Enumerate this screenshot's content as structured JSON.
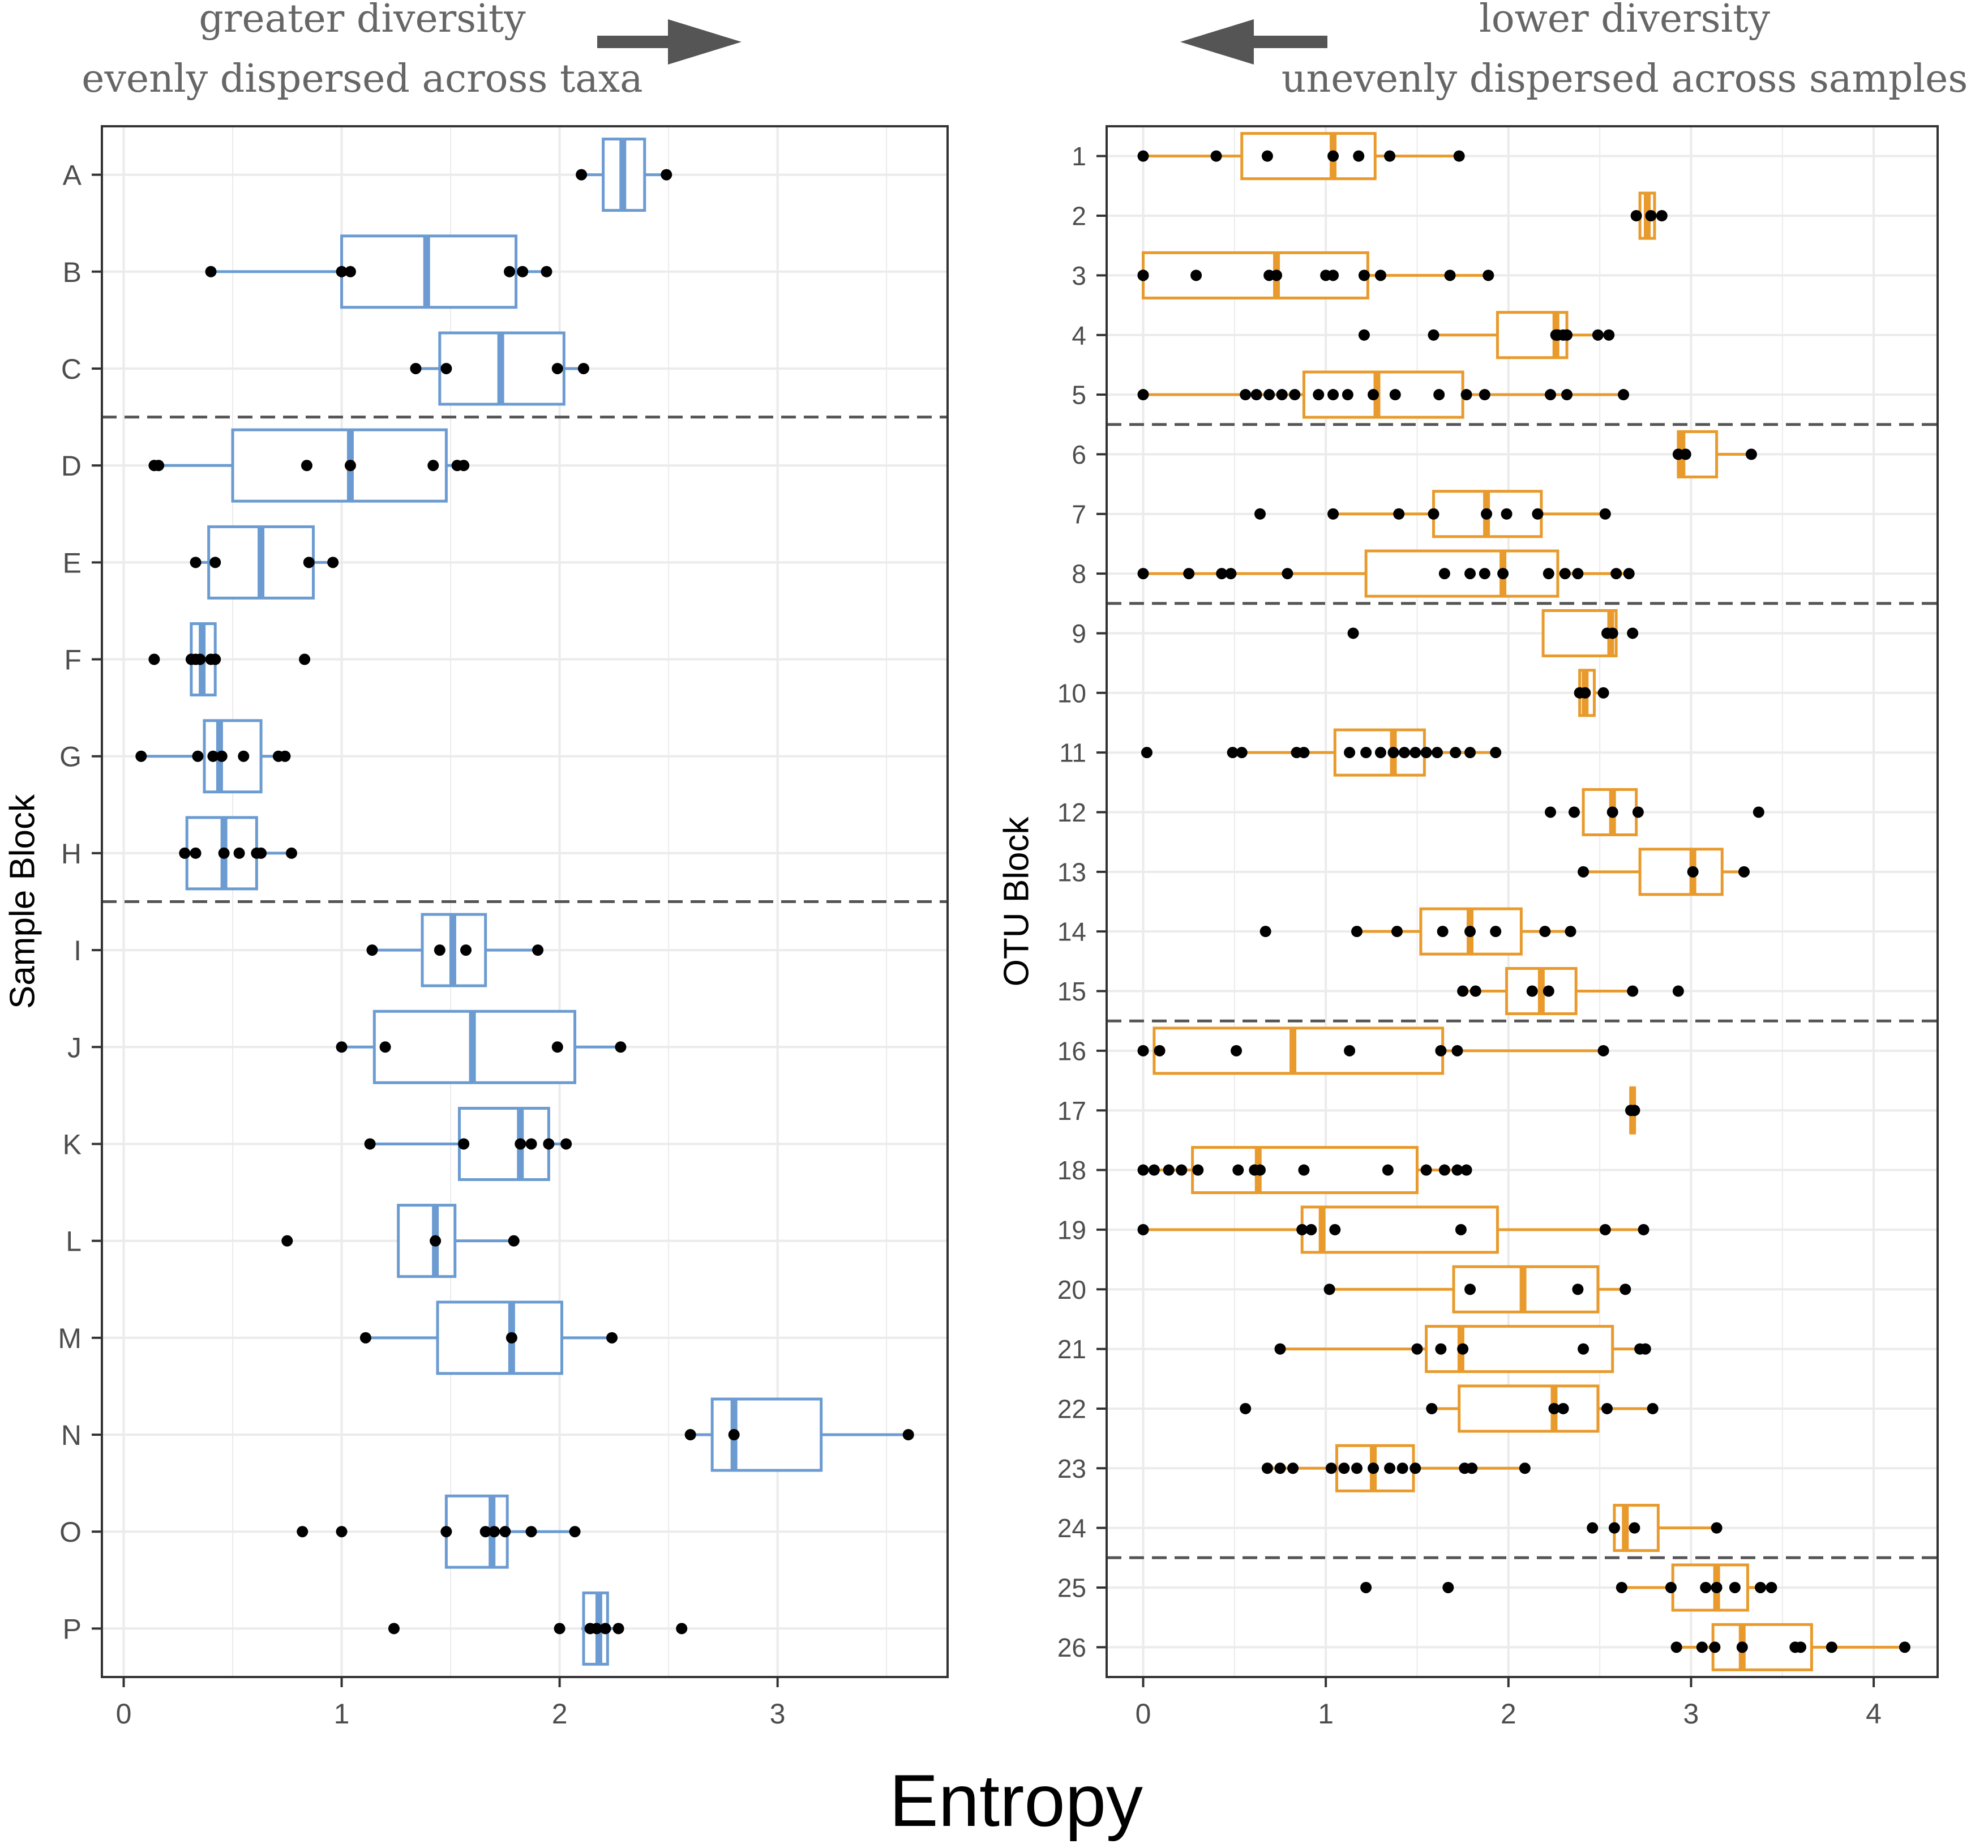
{
  "annotations": {
    "left_line1": "greater diversity",
    "left_line2": "evenly dispersed across taxa",
    "right_line1": "lower diversity",
    "right_line2": "unevenly dispersed across samples"
  },
  "shared_xlabel": "Entropy",
  "colors": {
    "sample_box": "#6b9bd1",
    "otu_box": "#e89a2c",
    "point": "#000000",
    "divider": "#555555",
    "arrow": "#555555"
  },
  "chart_data": [
    {
      "type": "boxplot",
      "orientation": "horizontal",
      "ylabel": "Sample Block",
      "xlabel": "Entropy",
      "xlim": [
        -0.1,
        3.78
      ],
      "xticks": [
        0,
        1,
        2,
        3
      ],
      "grid": true,
      "dividers_after": [
        "C",
        "H"
      ],
      "categories": [
        "A",
        "B",
        "C",
        "D",
        "E",
        "F",
        "G",
        "H",
        "I",
        "J",
        "K",
        "L",
        "M",
        "N",
        "O",
        "P"
      ],
      "boxes": [
        {
          "label": "A",
          "whisker_low": 2.1,
          "q1": 2.2,
          "median": 2.29,
          "q3": 2.39,
          "whisker_high": 2.49,
          "points": [
            2.1,
            2.49
          ]
        },
        {
          "label": "B",
          "whisker_low": 0.4,
          "q1": 1.0,
          "median": 1.39,
          "q3": 1.8,
          "whisker_high": 1.94,
          "points": [
            0.4,
            1.0,
            1.04,
            1.77,
            1.83,
            1.94
          ]
        },
        {
          "label": "C",
          "whisker_low": 1.34,
          "q1": 1.45,
          "median": 1.73,
          "q3": 2.02,
          "whisker_high": 2.11,
          "points": [
            1.34,
            1.48,
            1.99,
            2.11
          ]
        },
        {
          "label": "D",
          "whisker_low": 0.14,
          "q1": 0.5,
          "median": 1.04,
          "q3": 1.48,
          "whisker_high": 1.56,
          "points": [
            0.14,
            0.16,
            0.84,
            1.04,
            1.42,
            1.53,
            1.56
          ]
        },
        {
          "label": "E",
          "whisker_low": 0.33,
          "q1": 0.39,
          "median": 0.63,
          "q3": 0.87,
          "whisker_high": 0.96,
          "points": [
            0.33,
            0.42,
            0.85,
            0.96
          ]
        },
        {
          "label": "F",
          "whisker_low": 0.31,
          "q1": 0.31,
          "median": 0.36,
          "q3": 0.42,
          "whisker_high": 0.42,
          "points": [
            0.14,
            0.31,
            0.33,
            0.35,
            0.4,
            0.42,
            0.83
          ]
        },
        {
          "label": "G",
          "whisker_low": 0.08,
          "q1": 0.37,
          "median": 0.44,
          "q3": 0.63,
          "whisker_high": 0.74,
          "points": [
            0.08,
            0.34,
            0.41,
            0.45,
            0.55,
            0.71,
            0.74
          ]
        },
        {
          "label": "H",
          "whisker_low": 0.28,
          "q1": 0.29,
          "median": 0.46,
          "q3": 0.61,
          "whisker_high": 0.77,
          "points": [
            0.28,
            0.33,
            0.46,
            0.53,
            0.61,
            0.63,
            0.77
          ]
        },
        {
          "label": "I",
          "whisker_low": 1.14,
          "q1": 1.37,
          "median": 1.51,
          "q3": 1.66,
          "whisker_high": 1.9,
          "points": [
            1.14,
            1.45,
            1.57,
            1.9
          ]
        },
        {
          "label": "J",
          "whisker_low": 1.0,
          "q1": 1.15,
          "median": 1.6,
          "q3": 2.07,
          "whisker_high": 2.28,
          "points": [
            1.0,
            1.2,
            1.99,
            2.28
          ]
        },
        {
          "label": "K",
          "whisker_low": 1.13,
          "q1": 1.54,
          "median": 1.82,
          "q3": 1.95,
          "whisker_high": 2.03,
          "points": [
            1.13,
            1.56,
            1.82,
            1.87,
            1.95,
            2.03
          ]
        },
        {
          "label": "L",
          "whisker_low": 1.26,
          "q1": 1.26,
          "median": 1.43,
          "q3": 1.52,
          "whisker_high": 1.79,
          "points": [
            0.75,
            1.43,
            1.79
          ]
        },
        {
          "label": "M",
          "whisker_low": 1.11,
          "q1": 1.44,
          "median": 1.78,
          "q3": 2.01,
          "whisker_high": 2.24,
          "points": [
            1.11,
            1.78,
            2.24
          ]
        },
        {
          "label": "N",
          "whisker_low": 2.6,
          "q1": 2.7,
          "median": 2.8,
          "q3": 3.2,
          "whisker_high": 3.6,
          "points": [
            2.6,
            2.8,
            3.6
          ]
        },
        {
          "label": "O",
          "whisker_low": 1.48,
          "q1": 1.48,
          "median": 1.69,
          "q3": 1.76,
          "whisker_high": 2.07,
          "points": [
            0.82,
            1.0,
            1.48,
            1.66,
            1.7,
            1.75,
            1.87,
            2.07
          ]
        },
        {
          "label": "P",
          "whisker_low": 2.1,
          "q1": 2.11,
          "median": 2.18,
          "q3": 2.22,
          "whisker_high": 2.27,
          "points": [
            1.24,
            2.0,
            2.14,
            2.17,
            2.21,
            2.27,
            2.56
          ]
        }
      ]
    },
    {
      "type": "boxplot",
      "orientation": "horizontal",
      "ylabel": "OTU Block",
      "xlabel": "Entropy",
      "xlim": [
        -0.2,
        4.35
      ],
      "xticks": [
        0,
        1,
        2,
        3,
        4
      ],
      "grid": true,
      "dividers_after": [
        "5",
        "8",
        "15",
        "24"
      ],
      "categories": [
        "1",
        "2",
        "3",
        "4",
        "5",
        "6",
        "7",
        "8",
        "9",
        "10",
        "11",
        "12",
        "13",
        "14",
        "15",
        "16",
        "17",
        "18",
        "19",
        "20",
        "21",
        "22",
        "23",
        "24",
        "25",
        "26"
      ],
      "boxes": [
        {
          "label": "1",
          "whisker_low": 0.0,
          "q1": 0.54,
          "median": 1.04,
          "q3": 1.27,
          "whisker_high": 1.73,
          "points": [
            0.0,
            0.4,
            0.68,
            1.04,
            1.18,
            1.35,
            1.73
          ]
        },
        {
          "label": "2",
          "whisker_low": 2.72,
          "q1": 2.72,
          "median": 2.76,
          "q3": 2.8,
          "whisker_high": 2.8,
          "points": [
            2.7,
            2.78,
            2.84
          ]
        },
        {
          "label": "3",
          "whisker_low": 0.0,
          "q1": 0.0,
          "median": 0.73,
          "q3": 1.23,
          "whisker_high": 1.89,
          "points": [
            0.0,
            0.0,
            0.29,
            0.69,
            0.73,
            1.0,
            1.04,
            1.21,
            1.3,
            1.68,
            1.89
          ]
        },
        {
          "label": "4",
          "whisker_low": 1.59,
          "q1": 1.94,
          "median": 2.26,
          "q3": 2.32,
          "whisker_high": 2.55,
          "points": [
            1.21,
            1.59,
            2.26,
            2.27,
            2.3,
            2.32,
            2.49,
            2.55
          ]
        },
        {
          "label": "5",
          "whisker_low": 0.0,
          "q1": 0.88,
          "median": 1.28,
          "q3": 1.75,
          "whisker_high": 2.63,
          "points": [
            0.0,
            0.56,
            0.62,
            0.69,
            0.76,
            0.83,
            0.96,
            1.04,
            1.12,
            1.26,
            1.38,
            1.62,
            1.77,
            1.87,
            2.23,
            2.32,
            2.63
          ]
        },
        {
          "label": "6",
          "whisker_low": 2.93,
          "q1": 2.93,
          "median": 2.95,
          "q3": 3.14,
          "whisker_high": 3.33,
          "points": [
            2.93,
            2.97,
            3.33
          ]
        },
        {
          "label": "7",
          "whisker_low": 1.04,
          "q1": 1.59,
          "median": 1.88,
          "q3": 2.18,
          "whisker_high": 2.53,
          "points": [
            0.64,
            1.04,
            1.4,
            1.59,
            1.88,
            1.99,
            2.16,
            2.53
          ]
        },
        {
          "label": "8",
          "whisker_low": 0.0,
          "q1": 1.22,
          "median": 1.97,
          "q3": 2.27,
          "whisker_high": 2.66,
          "points": [
            0.0,
            0.25,
            0.43,
            0.48,
            0.79,
            1.65,
            1.79,
            1.87,
            1.97,
            2.22,
            2.31,
            2.38,
            2.59,
            2.66
          ]
        },
        {
          "label": "9",
          "whisker_low": 2.19,
          "q1": 2.19,
          "median": 2.56,
          "q3": 2.59,
          "whisker_high": 2.59,
          "points": [
            1.15,
            2.54,
            2.57,
            2.68
          ]
        },
        {
          "label": "10",
          "whisker_low": 2.39,
          "q1": 2.39,
          "median": 2.42,
          "q3": 2.47,
          "whisker_high": 2.52,
          "points": [
            2.39,
            2.42,
            2.52
          ]
        },
        {
          "label": "11",
          "whisker_low": 0.54,
          "q1": 1.05,
          "median": 1.37,
          "q3": 1.54,
          "whisker_high": 1.93,
          "points": [
            0.02,
            0.49,
            0.54,
            0.84,
            0.88,
            1.13,
            1.22,
            1.3,
            1.37,
            1.43,
            1.49,
            1.55,
            1.61,
            1.71,
            1.79,
            1.93
          ]
        },
        {
          "label": "12",
          "whisker_low": 2.41,
          "q1": 2.41,
          "median": 2.57,
          "q3": 2.7,
          "whisker_high": 2.7,
          "points": [
            2.23,
            2.36,
            2.57,
            2.71,
            3.37
          ]
        },
        {
          "label": "13",
          "whisker_low": 2.41,
          "q1": 2.72,
          "median": 3.01,
          "q3": 3.17,
          "whisker_high": 3.29,
          "points": [
            2.41,
            3.01,
            3.29
          ]
        },
        {
          "label": "14",
          "whisker_low": 1.17,
          "q1": 1.52,
          "median": 1.79,
          "q3": 2.07,
          "whisker_high": 2.34,
          "points": [
            0.67,
            1.17,
            1.39,
            1.64,
            1.79,
            1.93,
            2.2,
            2.34
          ]
        },
        {
          "label": "15",
          "whisker_low": 1.75,
          "q1": 1.99,
          "median": 2.18,
          "q3": 2.37,
          "whisker_high": 2.68,
          "points": [
            1.75,
            1.82,
            2.13,
            2.22,
            2.68,
            2.93
          ]
        },
        {
          "label": "16",
          "whisker_low": 0.06,
          "q1": 0.06,
          "median": 0.82,
          "q3": 1.64,
          "whisker_high": 2.52,
          "points": [
            0.0,
            0.09,
            0.51,
            1.13,
            1.63,
            1.72,
            2.52
          ]
        },
        {
          "label": "17",
          "whisker_low": 2.67,
          "q1": 2.67,
          "median": 2.68,
          "q3": 2.69,
          "whisker_high": 2.69,
          "points": [
            2.67,
            2.69
          ]
        },
        {
          "label": "18",
          "whisker_low": 0.0,
          "q1": 0.27,
          "median": 0.63,
          "q3": 1.5,
          "whisker_high": 1.77,
          "points": [
            0.0,
            0.06,
            0.14,
            0.21,
            0.3,
            0.52,
            0.61,
            0.64,
            0.88,
            1.34,
            1.55,
            1.65,
            1.72,
            1.77
          ]
        },
        {
          "label": "19",
          "whisker_low": 0.0,
          "q1": 0.87,
          "median": 0.98,
          "q3": 1.94,
          "whisker_high": 2.74,
          "points": [
            0.0,
            0.87,
            0.92,
            1.05,
            1.74,
            2.53,
            2.74
          ]
        },
        {
          "label": "20",
          "whisker_low": 1.02,
          "q1": 1.7,
          "median": 2.08,
          "q3": 2.49,
          "whisker_high": 2.64,
          "points": [
            1.02,
            1.79,
            2.38,
            2.64
          ]
        },
        {
          "label": "21",
          "whisker_low": 0.75,
          "q1": 1.55,
          "median": 1.74,
          "q3": 2.57,
          "whisker_high": 2.75,
          "points": [
            0.75,
            1.5,
            1.63,
            1.75,
            2.41,
            2.72,
            2.75
          ]
        },
        {
          "label": "22",
          "whisker_low": 1.58,
          "q1": 1.73,
          "median": 2.25,
          "q3": 2.49,
          "whisker_high": 2.79,
          "points": [
            0.56,
            1.58,
            2.25,
            2.3,
            2.54,
            2.79
          ]
        },
        {
          "label": "23",
          "whisker_low": 0.68,
          "q1": 1.06,
          "median": 1.26,
          "q3": 1.48,
          "whisker_high": 2.09,
          "points": [
            0.68,
            0.75,
            0.82,
            1.03,
            1.1,
            1.17,
            1.26,
            1.35,
            1.42,
            1.49,
            1.76,
            1.8,
            2.09
          ]
        },
        {
          "label": "24",
          "whisker_low": 2.58,
          "q1": 2.58,
          "median": 2.64,
          "q3": 2.82,
          "whisker_high": 3.14,
          "points": [
            2.46,
            2.58,
            2.69,
            3.14
          ]
        },
        {
          "label": "25",
          "whisker_low": 2.62,
          "q1": 2.9,
          "median": 3.14,
          "q3": 3.31,
          "whisker_high": 3.44,
          "points": [
            1.22,
            1.67,
            2.62,
            2.89,
            3.08,
            3.14,
            3.24,
            3.38,
            3.44
          ]
        },
        {
          "label": "26",
          "whisker_low": 2.92,
          "q1": 3.12,
          "median": 3.28,
          "q3": 3.66,
          "whisker_high": 4.17,
          "points": [
            2.92,
            3.06,
            3.13,
            3.28,
            3.57,
            3.6,
            3.77,
            4.17
          ]
        }
      ]
    }
  ]
}
